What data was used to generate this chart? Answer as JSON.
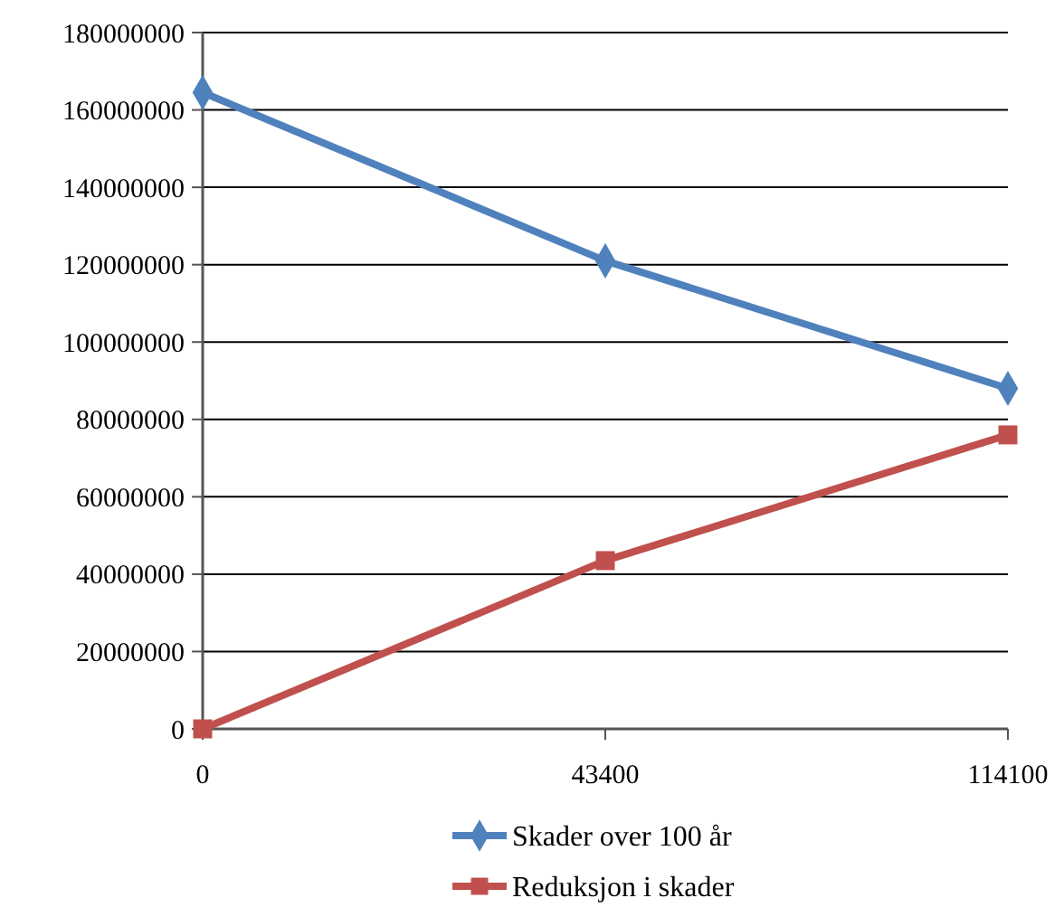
{
  "chart_data": {
    "type": "line",
    "categories": [
      "0",
      "43400",
      "114100"
    ],
    "series": [
      {
        "name": "Skader over 100 år",
        "color": "#4f81bd",
        "marker": "diamond",
        "values": [
          164500000,
          121000000,
          88000000
        ]
      },
      {
        "name": "Reduksjon i skader",
        "color": "#c0504d",
        "marker": "square",
        "values": [
          0,
          43500000,
          76000000
        ]
      }
    ],
    "ylim": [
      0,
      180000000
    ],
    "yticks": [
      0,
      20000000,
      40000000,
      60000000,
      80000000,
      100000000,
      120000000,
      140000000,
      160000000,
      180000000
    ],
    "grid": "y",
    "legend": "bottom"
  }
}
